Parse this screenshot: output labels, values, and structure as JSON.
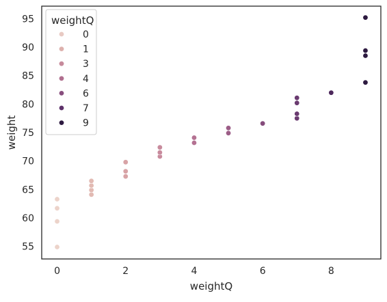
{
  "chart_data": {
    "type": "scatter",
    "xlabel": "weightQ",
    "ylabel": "weight",
    "xlim": [
      -0.45,
      9.45
    ],
    "ylim": [
      52.8,
      97.2
    ],
    "xticks": [
      0,
      2,
      4,
      6,
      8
    ],
    "yticks": [
      55,
      60,
      65,
      70,
      75,
      80,
      85,
      90,
      95
    ],
    "grid": false,
    "legend": {
      "title": "weightQ",
      "placement": "top-left",
      "entries": [
        {
          "label": "0",
          "color": "#e8cac3"
        },
        {
          "label": "1",
          "color": "#ddb1ad"
        },
        {
          "label": "3",
          "color": "#c68a9b"
        },
        {
          "label": "4",
          "color": "#b06f8f"
        },
        {
          "label": "6",
          "color": "#884e7e"
        },
        {
          "label": "7",
          "color": "#5e326a"
        },
        {
          "label": "9",
          "color": "#2d1a40"
        }
      ]
    },
    "points": [
      {
        "x": 0,
        "y": 54.9,
        "color": "#ecd3ca"
      },
      {
        "x": 0,
        "y": 59.4,
        "color": "#ecd3ca"
      },
      {
        "x": 0,
        "y": 61.7,
        "color": "#ecd3ca"
      },
      {
        "x": 0,
        "y": 63.3,
        "color": "#ecd3ca"
      },
      {
        "x": 1,
        "y": 64.1,
        "color": "#e2bab3"
      },
      {
        "x": 1,
        "y": 64.9,
        "color": "#e2bab3"
      },
      {
        "x": 1,
        "y": 65.7,
        "color": "#e2bab3"
      },
      {
        "x": 1,
        "y": 66.5,
        "color": "#e2bab3"
      },
      {
        "x": 2,
        "y": 67.3,
        "color": "#d8a3a6"
      },
      {
        "x": 2,
        "y": 68.2,
        "color": "#d8a3a6"
      },
      {
        "x": 2,
        "y": 69.8,
        "color": "#d8a3a6"
      },
      {
        "x": 3,
        "y": 70.8,
        "color": "#c88b9d"
      },
      {
        "x": 3,
        "y": 71.5,
        "color": "#c88b9d"
      },
      {
        "x": 3,
        "y": 72.4,
        "color": "#c88b9d"
      },
      {
        "x": 4,
        "y": 73.2,
        "color": "#b47292"
      },
      {
        "x": 4,
        "y": 74.1,
        "color": "#b47292"
      },
      {
        "x": 5,
        "y": 74.9,
        "color": "#9c5d87"
      },
      {
        "x": 5,
        "y": 75.8,
        "color": "#9c5d87"
      },
      {
        "x": 6,
        "y": 76.6,
        "color": "#854c7c"
      },
      {
        "x": 7,
        "y": 77.5,
        "color": "#6a3b70"
      },
      {
        "x": 7,
        "y": 78.3,
        "color": "#6a3b70"
      },
      {
        "x": 7,
        "y": 80.2,
        "color": "#6a3b70"
      },
      {
        "x": 7,
        "y": 81.1,
        "color": "#6a3b70"
      },
      {
        "x": 8,
        "y": 82.0,
        "color": "#4d285c"
      },
      {
        "x": 9,
        "y": 83.8,
        "color": "#2d1a40"
      },
      {
        "x": 9,
        "y": 88.5,
        "color": "#2d1a40"
      },
      {
        "x": 9,
        "y": 89.4,
        "color": "#2d1a40"
      },
      {
        "x": 9,
        "y": 95.2,
        "color": "#2d1a40"
      }
    ]
  }
}
